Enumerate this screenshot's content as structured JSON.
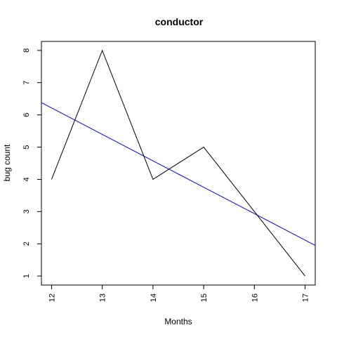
{
  "chart_data": {
    "type": "line",
    "title": "conductor",
    "xlabel": "Months",
    "ylabel": "bug count",
    "x": [
      12,
      13,
      14,
      15,
      16,
      17
    ],
    "x_ticks": [
      "12",
      "13",
      "14",
      "15",
      "16",
      "17"
    ],
    "y_ticks": [
      "1",
      "2",
      "3",
      "4",
      "5",
      "6",
      "7",
      "8"
    ],
    "xlim": [
      11.8,
      17.2
    ],
    "ylim": [
      0.72,
      8.28
    ],
    "grid": false,
    "series": [
      {
        "values": [
          4,
          8,
          4,
          5,
          3,
          1
        ],
        "color": "#000000"
      }
    ],
    "trend_line": {
      "x": [
        11.8,
        17.2
      ],
      "y": [
        6.38,
        1.95
      ],
      "color": "#0000ff"
    }
  }
}
